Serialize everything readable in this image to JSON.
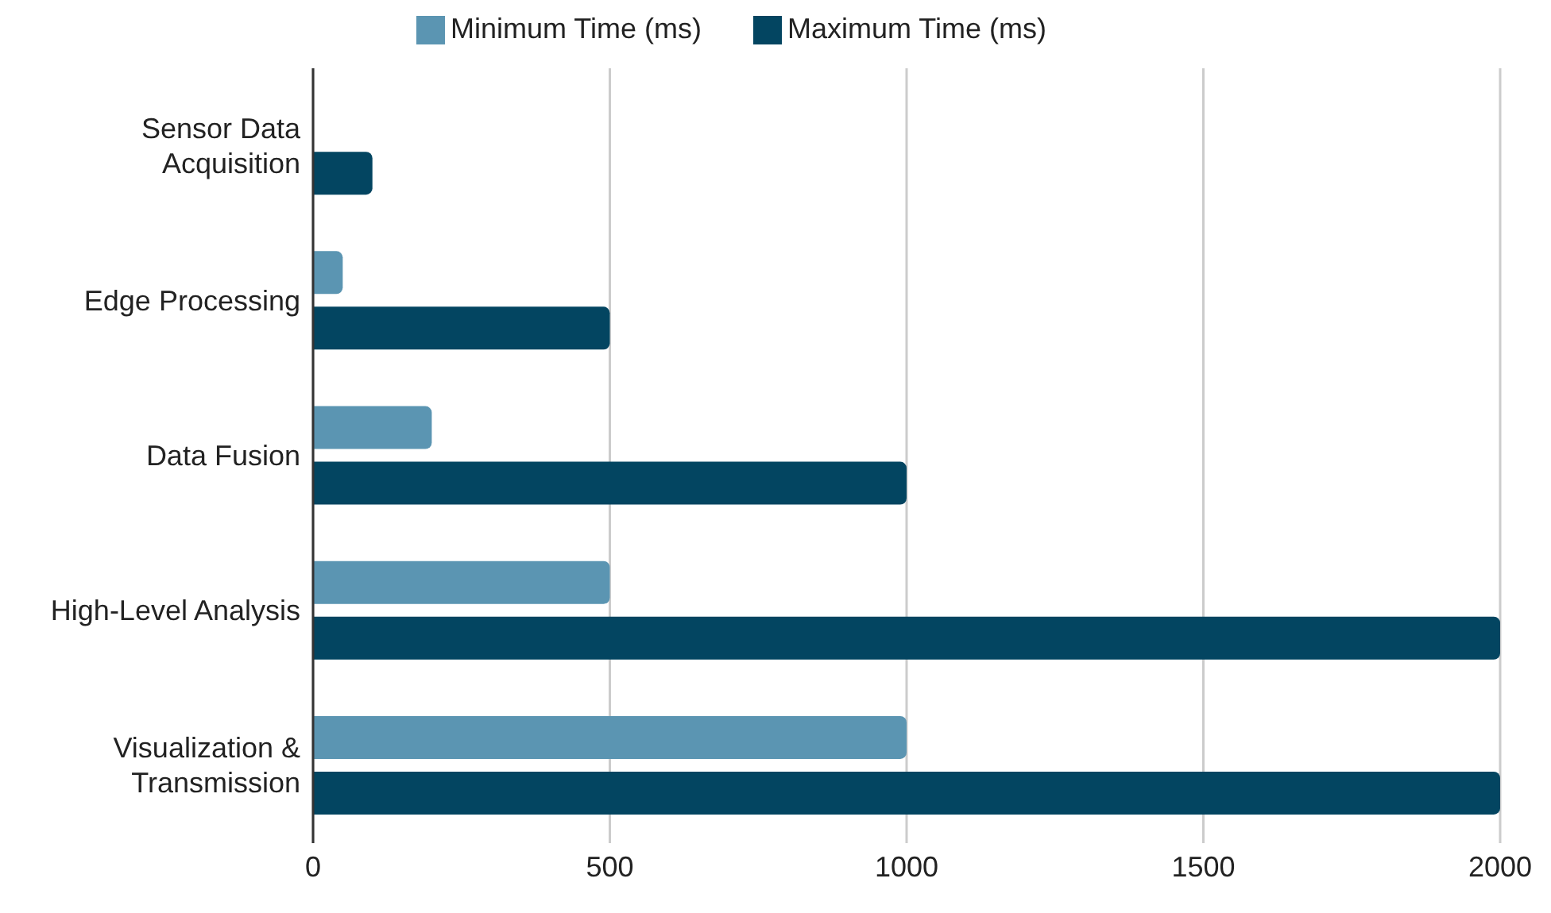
{
  "chart_data": {
    "type": "bar",
    "orientation": "horizontal",
    "categories": [
      "Sensor Data Acquisition",
      "Edge Processing",
      "Data Fusion",
      "High-Level Analysis",
      "Visualization & Transmission"
    ],
    "series": [
      {
        "name": "Minimum Time (ms)",
        "color": "#5b95b2",
        "values": [
          0,
          50,
          200,
          500,
          1000
        ]
      },
      {
        "name": "Maximum Time (ms)",
        "color": "#034561",
        "values": [
          100,
          500,
          1000,
          2000,
          2000
        ]
      }
    ],
    "xlim": [
      0,
      2000
    ],
    "xticks": [
      0,
      500,
      1000,
      1500,
      2000
    ],
    "grid": "x",
    "legend": "top"
  }
}
